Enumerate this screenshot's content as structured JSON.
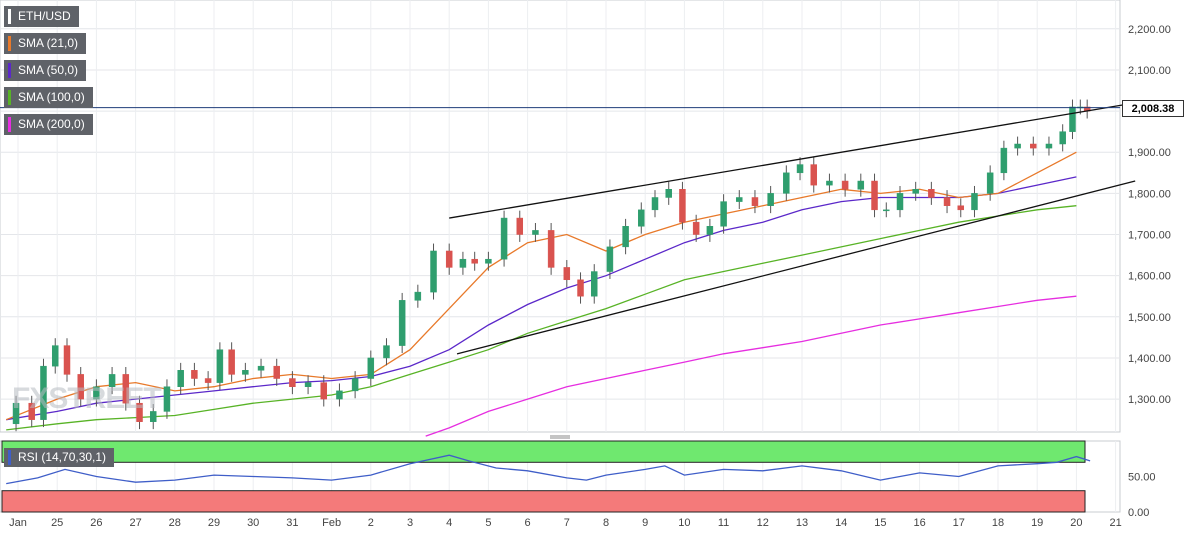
{
  "chart_data": [
    {
      "type": "candlestick",
      "symbol": "ETH/USD",
      "indicators": [
        {
          "name": "SMA (21,0)",
          "color": "#e8792a"
        },
        {
          "name": "SMA (50,0)",
          "color": "#5b28c9"
        },
        {
          "name": "SMA (100,0)",
          "color": "#58b326"
        },
        {
          "name": "SMA (200,0)",
          "color": "#e62ee0"
        }
      ],
      "last_price": 2008.38,
      "last_price_label": "2,008.38",
      "ylim": [
        1220,
        2270
      ],
      "yticks": [
        1300,
        1400,
        1500,
        1600,
        1700,
        1800,
        1900,
        2000,
        2100,
        2200
      ],
      "ytick_labels": [
        "1,300.00",
        "1,400.00",
        "1,500.00",
        "1,600.00",
        "1,700.00",
        "1,800.00",
        "1,900.00",
        "2,000.00",
        "2,100.00",
        "2,200.00"
      ],
      "xticks": [
        {
          "day": 0,
          "label": "Jan"
        },
        {
          "day": 1,
          "label": "25"
        },
        {
          "day": 2,
          "label": "26"
        },
        {
          "day": 3,
          "label": "27"
        },
        {
          "day": 4,
          "label": "28"
        },
        {
          "day": 5,
          "label": "29"
        },
        {
          "day": 6,
          "label": "30"
        },
        {
          "day": 7,
          "label": "31"
        },
        {
          "day": 8,
          "label": "Feb"
        },
        {
          "day": 9,
          "label": "2"
        },
        {
          "day": 10,
          "label": "3"
        },
        {
          "day": 11,
          "label": "4"
        },
        {
          "day": 12,
          "label": "5"
        },
        {
          "day": 13,
          "label": "6"
        },
        {
          "day": 14,
          "label": "7"
        },
        {
          "day": 15,
          "label": "8"
        },
        {
          "day": 16,
          "label": "9"
        },
        {
          "day": 17,
          "label": "10"
        },
        {
          "day": 18,
          "label": "11"
        },
        {
          "day": 19,
          "label": "12"
        },
        {
          "day": 20,
          "label": "13"
        },
        {
          "day": 21,
          "label": "14"
        },
        {
          "day": 22,
          "label": "15"
        },
        {
          "day": 23,
          "label": "16"
        },
        {
          "day": 24,
          "label": "17"
        },
        {
          "day": 25,
          "label": "18"
        },
        {
          "day": 26,
          "label": "19"
        },
        {
          "day": 27,
          "label": "20"
        },
        {
          "day": 28,
          "label": "21"
        }
      ],
      "price_path": [
        [
          -0.3,
          1240
        ],
        [
          0.2,
          1290
        ],
        [
          0.5,
          1250
        ],
        [
          0.8,
          1380
        ],
        [
          1.1,
          1430
        ],
        [
          1.4,
          1360
        ],
        [
          1.8,
          1300
        ],
        [
          2.2,
          1330
        ],
        [
          2.6,
          1360
        ],
        [
          2.9,
          1290
        ],
        [
          3.3,
          1245
        ],
        [
          3.6,
          1270
        ],
        [
          4.0,
          1330
        ],
        [
          4.3,
          1370
        ],
        [
          4.7,
          1350
        ],
        [
          5.0,
          1340
        ],
        [
          5.3,
          1420
        ],
        [
          5.6,
          1360
        ],
        [
          6.0,
          1370
        ],
        [
          6.4,
          1380
        ],
        [
          6.8,
          1350
        ],
        [
          7.2,
          1330
        ],
        [
          7.6,
          1340
        ],
        [
          8.0,
          1300
        ],
        [
          8.4,
          1320
        ],
        [
          8.8,
          1350
        ],
        [
          9.2,
          1400
        ],
        [
          9.6,
          1430
        ],
        [
          10.0,
          1540
        ],
        [
          10.4,
          1560
        ],
        [
          10.8,
          1660
        ],
        [
          11.2,
          1620
        ],
        [
          11.5,
          1640
        ],
        [
          11.8,
          1630
        ],
        [
          12.2,
          1640
        ],
        [
          12.6,
          1740
        ],
        [
          13.0,
          1700
        ],
        [
          13.4,
          1710
        ],
        [
          13.8,
          1620
        ],
        [
          14.2,
          1590
        ],
        [
          14.5,
          1550
        ],
        [
          14.9,
          1610
        ],
        [
          15.3,
          1670
        ],
        [
          15.7,
          1720
        ],
        [
          16.1,
          1760
        ],
        [
          16.4,
          1790
        ],
        [
          16.8,
          1810
        ],
        [
          17.1,
          1730
        ],
        [
          17.5,
          1700
        ],
        [
          17.8,
          1720
        ],
        [
          18.2,
          1780
        ],
        [
          18.6,
          1790
        ],
        [
          19.0,
          1770
        ],
        [
          19.4,
          1800
        ],
        [
          19.8,
          1850
        ],
        [
          20.1,
          1870
        ],
        [
          20.5,
          1820
        ],
        [
          20.9,
          1830
        ],
        [
          21.3,
          1810
        ],
        [
          21.7,
          1830
        ],
        [
          22.0,
          1760
        ],
        [
          22.3,
          1760
        ],
        [
          22.7,
          1800
        ],
        [
          23.1,
          1810
        ],
        [
          23.5,
          1790
        ],
        [
          23.9,
          1770
        ],
        [
          24.2,
          1760
        ],
        [
          24.6,
          1800
        ],
        [
          25.0,
          1850
        ],
        [
          25.3,
          1910
        ],
        [
          25.7,
          1920
        ],
        [
          26.1,
          1910
        ],
        [
          26.5,
          1920
        ],
        [
          26.8,
          1950
        ],
        [
          27.0,
          2010
        ],
        [
          27.2,
          2010
        ],
        [
          27.35,
          2000
        ]
      ],
      "sma21": [
        [
          -0.3,
          1250
        ],
        [
          1,
          1300
        ],
        [
          2,
          1330
        ],
        [
          3,
          1340
        ],
        [
          4,
          1320
        ],
        [
          5,
          1330
        ],
        [
          6,
          1350
        ],
        [
          7,
          1360
        ],
        [
          8,
          1350
        ],
        [
          9,
          1360
        ],
        [
          10,
          1420
        ],
        [
          11,
          1520
        ],
        [
          12,
          1620
        ],
        [
          13,
          1680
        ],
        [
          14,
          1700
        ],
        [
          15,
          1660
        ],
        [
          16,
          1700
        ],
        [
          17,
          1730
        ],
        [
          18,
          1750
        ],
        [
          19,
          1770
        ],
        [
          20,
          1790
        ],
        [
          21,
          1810
        ],
        [
          22,
          1800
        ],
        [
          23,
          1810
        ],
        [
          24,
          1790
        ],
        [
          25,
          1800
        ],
        [
          26,
          1850
        ],
        [
          27,
          1900
        ]
      ],
      "sma50": [
        [
          -0.3,
          1250
        ],
        [
          1,
          1270
        ],
        [
          2,
          1290
        ],
        [
          3,
          1300
        ],
        [
          4,
          1310
        ],
        [
          5,
          1320
        ],
        [
          6,
          1330
        ],
        [
          7,
          1340
        ],
        [
          8,
          1345
        ],
        [
          9,
          1355
        ],
        [
          10,
          1380
        ],
        [
          11,
          1420
        ],
        [
          12,
          1480
        ],
        [
          13,
          1530
        ],
        [
          14,
          1570
        ],
        [
          15,
          1600
        ],
        [
          16,
          1640
        ],
        [
          17,
          1680
        ],
        [
          18,
          1710
        ],
        [
          19,
          1730
        ],
        [
          20,
          1760
        ],
        [
          21,
          1780
        ],
        [
          22,
          1790
        ],
        [
          23,
          1790
        ],
        [
          24,
          1790
        ],
        [
          25,
          1800
        ],
        [
          26,
          1820
        ],
        [
          27,
          1840
        ]
      ],
      "sma100": [
        [
          -0.3,
          1225
        ],
        [
          1,
          1240
        ],
        [
          2,
          1250
        ],
        [
          3,
          1255
        ],
        [
          4,
          1260
        ],
        [
          5,
          1275
        ],
        [
          6,
          1290
        ],
        [
          7,
          1300
        ],
        [
          8,
          1310
        ],
        [
          9,
          1330
        ],
        [
          10,
          1360
        ],
        [
          11,
          1390
        ],
        [
          12,
          1420
        ],
        [
          13,
          1460
        ],
        [
          14,
          1490
        ],
        [
          15,
          1520
        ],
        [
          16,
          1555
        ],
        [
          17,
          1590
        ],
        [
          18,
          1610
        ],
        [
          19,
          1630
        ],
        [
          20,
          1650
        ],
        [
          21,
          1670
        ],
        [
          22,
          1690
        ],
        [
          23,
          1710
        ],
        [
          24,
          1730
        ],
        [
          25,
          1745
        ],
        [
          26,
          1760
        ],
        [
          27,
          1770
        ]
      ],
      "sma200": [
        [
          10.4,
          1210
        ],
        [
          11,
          1230
        ],
        [
          12,
          1270
        ],
        [
          13,
          1300
        ],
        [
          14,
          1330
        ],
        [
          15,
          1350
        ],
        [
          16,
          1370
        ],
        [
          17,
          1390
        ],
        [
          18,
          1410
        ],
        [
          19,
          1425
        ],
        [
          20,
          1440
        ],
        [
          21,
          1460
        ],
        [
          22,
          1480
        ],
        [
          23,
          1495
        ],
        [
          24,
          1510
        ],
        [
          25,
          1525
        ],
        [
          26,
          1540
        ],
        [
          27,
          1550
        ]
      ],
      "trendlines": [
        {
          "from": [
            11,
            1740
          ],
          "to": [
            28.5,
            2020
          ]
        },
        {
          "from": [
            11.2,
            1410
          ],
          "to": [
            28.5,
            1830
          ]
        }
      ],
      "horizontal_line": 2008.38
    },
    {
      "type": "line",
      "indicator": "RSI (14,70,30,1)",
      "ylim": [
        0,
        100
      ],
      "yticks": [
        0,
        50
      ],
      "ytick_labels": [
        "0.00",
        "50.00"
      ],
      "overbought": 70,
      "oversold": 30,
      "values": [
        [
          -0.3,
          40
        ],
        [
          0.5,
          48
        ],
        [
          1.2,
          60
        ],
        [
          2,
          50
        ],
        [
          3,
          42
        ],
        [
          4,
          45
        ],
        [
          5,
          52
        ],
        [
          6,
          50
        ],
        [
          7,
          48
        ],
        [
          8,
          45
        ],
        [
          9,
          52
        ],
        [
          10,
          68
        ],
        [
          11,
          80
        ],
        [
          11.5,
          72
        ],
        [
          12.2,
          62
        ],
        [
          13,
          58
        ],
        [
          14,
          48
        ],
        [
          14.5,
          45
        ],
        [
          15,
          52
        ],
        [
          16,
          60
        ],
        [
          16.5,
          65
        ],
        [
          17,
          52
        ],
        [
          18,
          60
        ],
        [
          19,
          58
        ],
        [
          20,
          65
        ],
        [
          21,
          58
        ],
        [
          22,
          45
        ],
        [
          22.5,
          50
        ],
        [
          23,
          55
        ],
        [
          24,
          50
        ],
        [
          25,
          65
        ],
        [
          26,
          68
        ],
        [
          26.5,
          70
        ],
        [
          27,
          78
        ],
        [
          27.35,
          72
        ]
      ]
    }
  ],
  "watermark": "FXSTREET"
}
